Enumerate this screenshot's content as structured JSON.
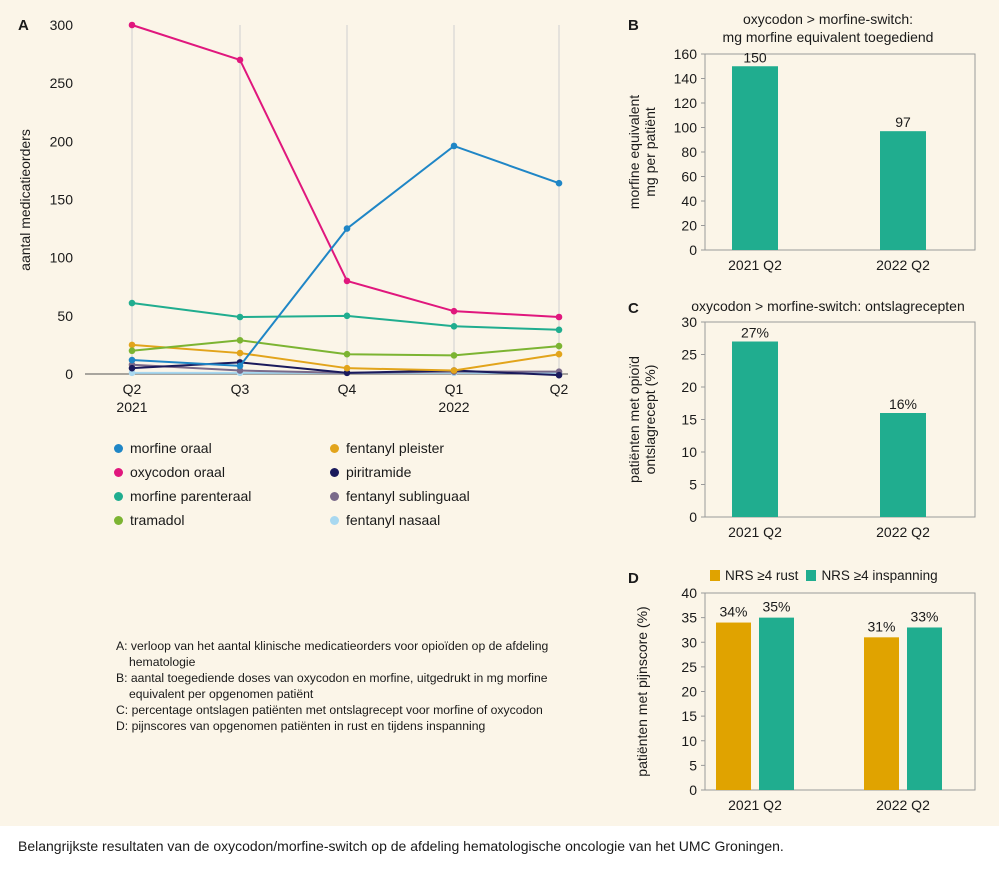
{
  "caption": "Belangrijkste resultaten van de oxycodon/morfine-switch op de afdeling hematologische oncologie van het UMC Groningen.",
  "notes": [
    "A: verloop van het aantal klinische medicatieorders voor opioïden op de afdeling hematologie",
    "B: aantal toegediende doses van oxycodon en morfine, uitgedrukt in mg morfine equivalent per opgenomen patiënt",
    "C: percentage ontslagen patiënten met ontslagrecept voor morfine of oxycodon",
    "D: pijnscores van opgenomen patiënten in rust en tijdens inspanning"
  ],
  "chart_data": [
    {
      "panel": "A",
      "type": "line",
      "ylabel": "aantal medicatieorders",
      "ylim": [
        0,
        300
      ],
      "yticks": [
        0,
        50,
        100,
        150,
        200,
        250,
        300
      ],
      "categories": [
        [
          "Q2",
          "2021"
        ],
        [
          "Q3",
          ""
        ],
        [
          "Q4",
          ""
        ],
        [
          "Q1",
          "2022"
        ],
        [
          "Q2",
          ""
        ]
      ],
      "grid": "vertical",
      "series": [
        {
          "name": "morfine oraal",
          "color": "#1f86c6",
          "values": [
            12,
            7,
            125,
            196,
            164
          ]
        },
        {
          "name": "oxycodon oraal",
          "color": "#e0177d",
          "values": [
            300,
            270,
            80,
            54,
            49
          ]
        },
        {
          "name": "morfine parenteraal",
          "color": "#20ad8f",
          "values": [
            61,
            49,
            50,
            41,
            38
          ]
        },
        {
          "name": "tramadol",
          "color": "#7cb432",
          "values": [
            20,
            29,
            17,
            16,
            24
          ]
        },
        {
          "name": "fentanyl pleister",
          "color": "#e2a41b",
          "values": [
            25,
            18,
            5,
            3,
            17
          ]
        },
        {
          "name": "piritramide",
          "color": "#1a1a5c",
          "values": [
            5,
            10,
            1,
            3,
            -1
          ]
        },
        {
          "name": "fentanyl sublinguaal",
          "color": "#7a6a8a",
          "values": [
            8,
            3,
            1,
            2,
            2
          ]
        },
        {
          "name": "fentanyl nasaal",
          "color": "#a8d8f0",
          "values": [
            1,
            1,
            1,
            1,
            1
          ]
        }
      ]
    },
    {
      "panel": "B",
      "type": "bar",
      "title": [
        "oxycodon > morfine-switch:",
        "mg morfine equivalent toegediend"
      ],
      "ylabel": [
        "morfine equivalent",
        "mg per patiënt"
      ],
      "ylim": [
        0,
        160
      ],
      "yticks": [
        0,
        20,
        40,
        60,
        80,
        100,
        120,
        140,
        160
      ],
      "categories": [
        "2021 Q2",
        "2022 Q2"
      ],
      "values": [
        150,
        97
      ],
      "data_labels": [
        "150",
        "97"
      ],
      "color": "#20ad8f"
    },
    {
      "panel": "C",
      "type": "bar",
      "title": [
        "oxycodon > morfine-switch: ontslagrecepten"
      ],
      "ylabel": [
        "patiënten met opioïd",
        "ontslagrecept (%)"
      ],
      "ylim": [
        0,
        30
      ],
      "yticks": [
        0,
        5,
        10,
        15,
        20,
        25,
        30
      ],
      "categories": [
        "2021 Q2",
        "2022 Q2"
      ],
      "values": [
        27,
        16
      ],
      "data_labels": [
        "27%",
        "16%"
      ],
      "color": "#20ad8f"
    },
    {
      "panel": "D",
      "type": "bar",
      "ylabel": [
        "patiënten met pijnscore (%)"
      ],
      "ylim": [
        0,
        40
      ],
      "yticks": [
        0,
        5,
        10,
        15,
        20,
        25,
        30,
        35,
        40
      ],
      "categories": [
        "2021 Q2",
        "2022 Q2"
      ],
      "legend_position": "top",
      "series": [
        {
          "name": "NRS ≥4 rust",
          "color": "#e0a300",
          "values": [
            34,
            31
          ],
          "data_labels": [
            "34%",
            "31%"
          ]
        },
        {
          "name": "NRS ≥4 inspanning",
          "color": "#20ad8f",
          "values": [
            35,
            33
          ],
          "data_labels": [
            "35%",
            "33%"
          ]
        }
      ]
    }
  ]
}
